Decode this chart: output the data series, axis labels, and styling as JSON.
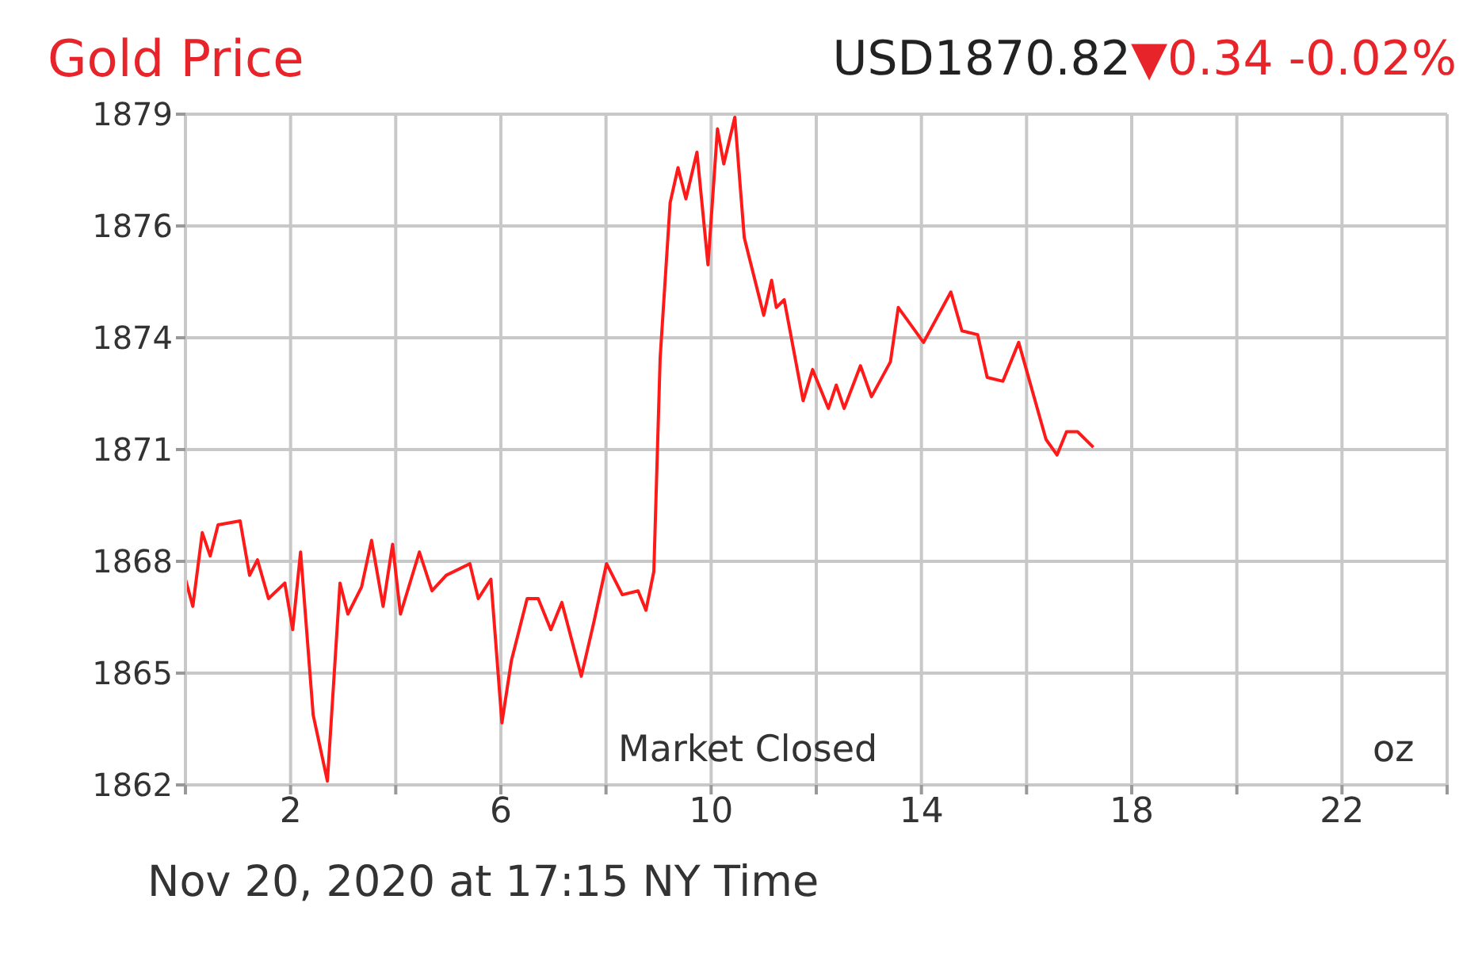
{
  "chart_data": {
    "type": "line",
    "title": "Gold Price",
    "subtitle": "USD1870.82▼0.34 -0.02%",
    "annotations": [
      "Market Closed",
      "oz",
      "Nov 20, 2020 at 17:15 NY Time"
    ],
    "x": [
      0.0,
      0.14,
      0.32,
      0.47,
      0.62,
      1.04,
      1.22,
      1.37,
      1.58,
      1.89,
      2.04,
      2.19,
      2.43,
      2.7,
      2.94,
      3.09,
      3.35,
      3.54,
      3.76,
      3.94,
      4.09,
      4.45,
      4.69,
      4.96,
      5.41,
      5.57,
      5.81,
      6.02,
      6.2,
      6.5,
      6.71,
      6.95,
      7.16,
      7.53,
      7.77,
      8.01,
      8.31,
      8.61,
      8.76,
      8.91,
      9.03,
      9.22,
      9.37,
      9.52,
      9.73,
      9.94,
      10.12,
      10.24,
      10.45,
      10.63,
      11.0,
      11.15,
      11.24,
      11.39,
      11.75,
      11.93,
      12.23,
      12.38,
      12.53,
      12.84,
      13.05,
      13.41,
      13.56,
      14.04,
      14.56,
      14.77,
      15.07,
      15.25,
      15.55,
      15.85,
      16.37,
      16.58,
      16.76,
      16.97,
      17.27
    ],
    "series": [
      {
        "color": "#ff1a1a",
        "values": [
          1867.3,
          1866.6,
          1868.5,
          1867.9,
          1868.7,
          1868.8,
          1867.4,
          1867.8,
          1866.8,
          1867.2,
          1866.0,
          1868.0,
          1863.8,
          1862.1,
          1867.2,
          1866.4,
          1867.1,
          1868.3,
          1866.6,
          1868.2,
          1866.4,
          1868.0,
          1867.0,
          1867.4,
          1867.7,
          1866.8,
          1867.3,
          1863.6,
          1865.2,
          1866.8,
          1866.8,
          1866.0,
          1866.7,
          1864.8,
          1866.2,
          1867.7,
          1866.9,
          1867.0,
          1866.5,
          1867.5,
          1873.0,
          1877.0,
          1877.9,
          1877.1,
          1878.3,
          1875.4,
          1878.9,
          1878.0,
          1879.2,
          1876.1,
          1874.1,
          1875.0,
          1874.3,
          1874.5,
          1871.9,
          1872.7,
          1871.7,
          1872.3,
          1871.7,
          1872.8,
          1872.0,
          1872.9,
          1874.3,
          1873.4,
          1874.7,
          1873.7,
          1873.6,
          1872.5,
          1872.4,
          1873.4,
          1870.9,
          1870.5,
          1871.1,
          1871.1,
          1870.7
        ]
      }
    ],
    "xlim": [
      0,
      24
    ],
    "xticks": [
      {
        "value": 0,
        "label": null
      },
      2,
      {
        "value": 4,
        "label": null
      },
      6,
      {
        "value": 8,
        "label": null
      },
      10,
      {
        "value": 12,
        "label": null
      },
      14,
      {
        "value": 16,
        "label": null
      },
      18,
      {
        "value": 20,
        "label": null
      },
      22,
      {
        "value": 24,
        "label": null
      }
    ],
    "ylim": [
      1862,
      1879.28
    ],
    "yticks": [
      {
        "value": 1862,
        "label": "1862"
      },
      {
        "value": 1864.88,
        "label": "1865"
      },
      {
        "value": 1867.76,
        "label": "1868"
      },
      {
        "value": 1870.64,
        "label": "1871"
      },
      {
        "value": 1873.52,
        "label": "1874"
      },
      {
        "value": 1876.4,
        "label": "1876"
      },
      {
        "value": 1879.28,
        "label": "1879"
      }
    ],
    "grid": true,
    "legend": false,
    "marker": "none",
    "line_style": "solid"
  }
}
